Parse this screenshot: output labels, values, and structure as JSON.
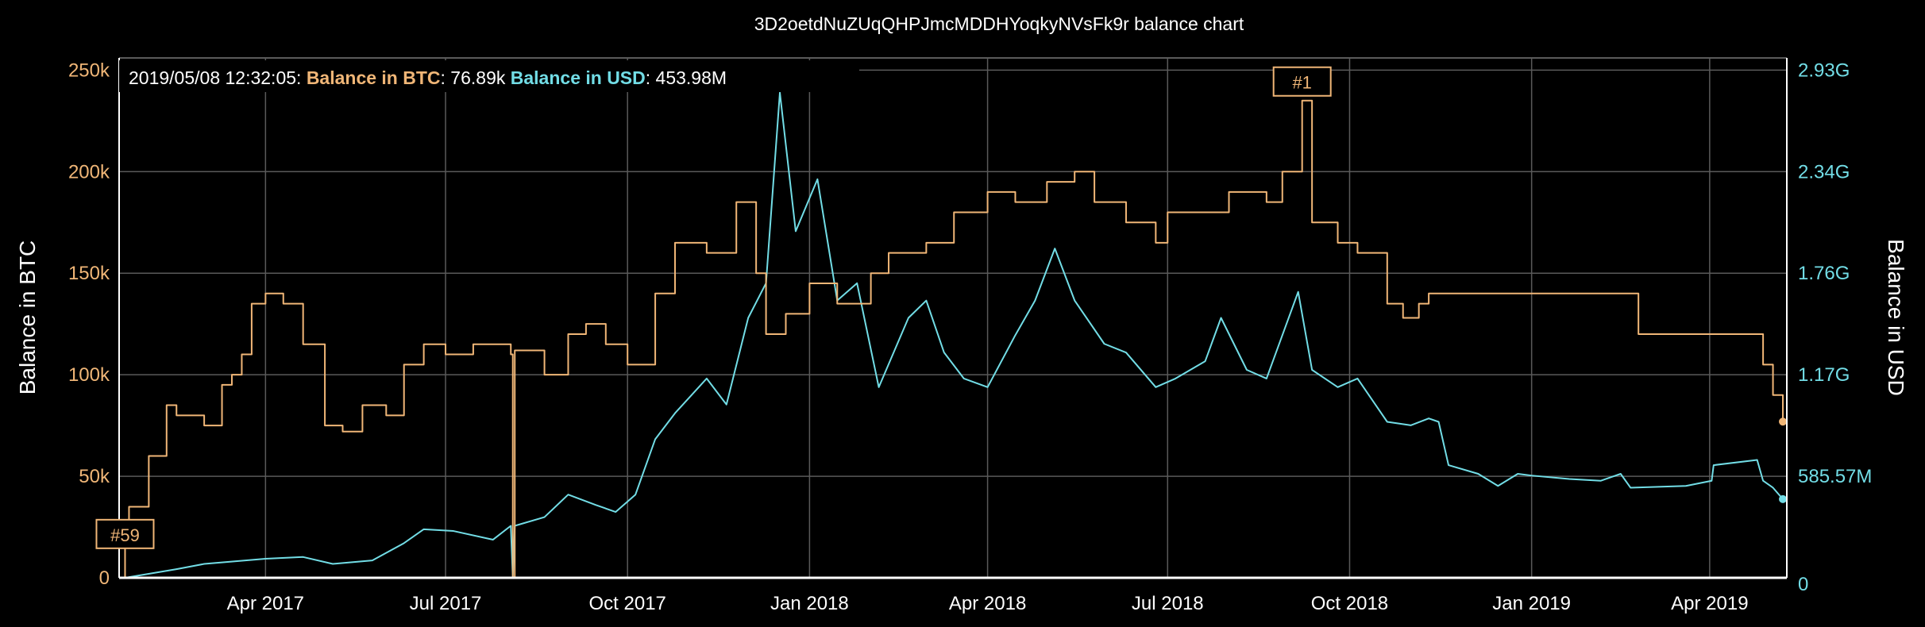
{
  "chart_data": {
    "type": "line",
    "title": "3D2oetdNuZUqQHPJmcMDDHYoqkyNVsFk9r balance chart",
    "xlabel": "",
    "ylabel": "Balance in BTC",
    "y2label": "Balance in USD",
    "xlim": [
      "2017-01-17",
      "2019-05-10"
    ],
    "ylim": [
      0,
      256000
    ],
    "y2lim": [
      0,
      3000000000
    ],
    "grid": true,
    "x_ticks": [
      {
        "date": "2017-04-01",
        "label": "Apr 2017"
      },
      {
        "date": "2017-07-01",
        "label": "Jul 2017"
      },
      {
        "date": "2017-10-01",
        "label": "Oct 2017"
      },
      {
        "date": "2018-01-01",
        "label": "Jan 2018"
      },
      {
        "date": "2018-04-01",
        "label": "Apr 2018"
      },
      {
        "date": "2018-07-01",
        "label": "Jul 2018"
      },
      {
        "date": "2018-10-01",
        "label": "Oct 2018"
      },
      {
        "date": "2019-01-01",
        "label": "Jan 2019"
      },
      {
        "date": "2019-04-01",
        "label": "Apr 2019"
      }
    ],
    "y_ticks": [
      {
        "value": 0,
        "label": "0"
      },
      {
        "value": 50000,
        "label": "50k"
      },
      {
        "value": 100000,
        "label": "100k"
      },
      {
        "value": 150000,
        "label": "150k"
      },
      {
        "value": 200000,
        "label": "200k"
      },
      {
        "value": 250000,
        "label": "250k"
      }
    ],
    "y2_ticks": [
      {
        "value": 0,
        "label": "0"
      },
      {
        "value": 585570000,
        "label": "585.57M"
      },
      {
        "value": 1171140000,
        "label": "1.17G"
      },
      {
        "value": 1756710000,
        "label": "1.76G"
      },
      {
        "value": 2342280000,
        "label": "2.34G"
      },
      {
        "value": 2927850000,
        "label": "2.93G"
      }
    ],
    "legend": {
      "position": "top-left",
      "timestamp": "2019/05/08 12:32:05:",
      "btc_label": "Balance in BTC",
      "btc_value": ": 76.89k",
      "usd_label": "Balance in USD",
      "usd_value": ": 453.98M"
    },
    "annotations": [
      {
        "label": "#59",
        "date": "2017-01-20",
        "series": "btc",
        "value": 20000
      },
      {
        "label": "#1",
        "date": "2018-09-07",
        "series": "btc",
        "value": 235000
      }
    ],
    "colors": {
      "btc": "#f0b677",
      "usd": "#72dde6",
      "grid": "#5a5a5a",
      "axis": "#ffffff"
    },
    "series": [
      {
        "name": "Balance in BTC",
        "axis": "left",
        "color": "#f0b677",
        "step": true,
        "points": [
          [
            "2017-01-20",
            0
          ],
          [
            "2017-01-20",
            20000
          ],
          [
            "2017-01-22",
            35000
          ],
          [
            "2017-02-01",
            60000
          ],
          [
            "2017-02-10",
            85000
          ],
          [
            "2017-02-15",
            80000
          ],
          [
            "2017-03-01",
            75000
          ],
          [
            "2017-03-10",
            95000
          ],
          [
            "2017-03-15",
            100000
          ],
          [
            "2017-03-20",
            110000
          ],
          [
            "2017-03-25",
            135000
          ],
          [
            "2017-04-01",
            140000
          ],
          [
            "2017-04-10",
            135000
          ],
          [
            "2017-04-20",
            115000
          ],
          [
            "2017-05-01",
            75000
          ],
          [
            "2017-05-10",
            72000
          ],
          [
            "2017-05-20",
            85000
          ],
          [
            "2017-06-01",
            80000
          ],
          [
            "2017-06-10",
            105000
          ],
          [
            "2017-06-20",
            115000
          ],
          [
            "2017-07-01",
            110000
          ],
          [
            "2017-07-15",
            115000
          ],
          [
            "2017-08-03",
            110000
          ],
          [
            "2017-08-04",
            0
          ],
          [
            "2017-08-05",
            112000
          ],
          [
            "2017-08-20",
            100000
          ],
          [
            "2017-09-01",
            120000
          ],
          [
            "2017-09-10",
            125000
          ],
          [
            "2017-09-20",
            115000
          ],
          [
            "2017-10-01",
            105000
          ],
          [
            "2017-10-15",
            140000
          ],
          [
            "2017-10-25",
            165000
          ],
          [
            "2017-11-10",
            160000
          ],
          [
            "2017-11-25",
            185000
          ],
          [
            "2017-12-05",
            150000
          ],
          [
            "2017-12-10",
            120000
          ],
          [
            "2017-12-20",
            130000
          ],
          [
            "2018-01-01",
            145000
          ],
          [
            "2018-01-15",
            135000
          ],
          [
            "2018-02-01",
            150000
          ],
          [
            "2018-02-10",
            160000
          ],
          [
            "2018-03-01",
            165000
          ],
          [
            "2018-03-15",
            180000
          ],
          [
            "2018-04-01",
            190000
          ],
          [
            "2018-04-15",
            185000
          ],
          [
            "2018-05-01",
            195000
          ],
          [
            "2018-05-15",
            200000
          ],
          [
            "2018-05-25",
            185000
          ],
          [
            "2018-06-10",
            175000
          ],
          [
            "2018-06-25",
            165000
          ],
          [
            "2018-07-01",
            180000
          ],
          [
            "2018-07-10",
            180000
          ],
          [
            "2018-08-01",
            190000
          ],
          [
            "2018-08-20",
            185000
          ],
          [
            "2018-08-28",
            200000
          ],
          [
            "2018-09-07",
            235000
          ],
          [
            "2018-09-12",
            175000
          ],
          [
            "2018-09-25",
            165000
          ],
          [
            "2018-10-05",
            160000
          ],
          [
            "2018-10-20",
            135000
          ],
          [
            "2018-10-28",
            128000
          ],
          [
            "2018-11-05",
            135000
          ],
          [
            "2018-11-10",
            140000
          ],
          [
            "2019-02-24",
            140000
          ],
          [
            "2019-02-24",
            120000
          ],
          [
            "2019-04-28",
            120000
          ],
          [
            "2019-04-28",
            105000
          ],
          [
            "2019-05-03",
            105000
          ],
          [
            "2019-05-03",
            90000
          ],
          [
            "2019-05-08",
            90000
          ],
          [
            "2019-05-08",
            76890
          ]
        ]
      },
      {
        "name": "Balance in USD",
        "axis": "right",
        "color": "#72dde6",
        "step": false,
        "points": [
          [
            "2017-01-20",
            0
          ],
          [
            "2017-02-15",
            50000000
          ],
          [
            "2017-03-01",
            80000000
          ],
          [
            "2017-04-01",
            110000000
          ],
          [
            "2017-04-20",
            120000000
          ],
          [
            "2017-05-05",
            80000000
          ],
          [
            "2017-05-25",
            100000000
          ],
          [
            "2017-06-10",
            200000000
          ],
          [
            "2017-06-20",
            280000000
          ],
          [
            "2017-07-05",
            270000000
          ],
          [
            "2017-07-25",
            220000000
          ],
          [
            "2017-08-03",
            300000000
          ],
          [
            "2017-08-04",
            0
          ],
          [
            "2017-08-05",
            300000000
          ],
          [
            "2017-08-20",
            350000000
          ],
          [
            "2017-09-01",
            480000000
          ],
          [
            "2017-09-15",
            420000000
          ],
          [
            "2017-09-25",
            380000000
          ],
          [
            "2017-10-05",
            480000000
          ],
          [
            "2017-10-15",
            800000000
          ],
          [
            "2017-10-25",
            950000000
          ],
          [
            "2017-11-10",
            1150000000
          ],
          [
            "2017-11-20",
            1000000000
          ],
          [
            "2017-12-01",
            1500000000
          ],
          [
            "2017-12-10",
            1700000000
          ],
          [
            "2017-12-17",
            2800000000
          ],
          [
            "2017-12-25",
            2000000000
          ],
          [
            "2018-01-05",
            2300000000
          ],
          [
            "2018-01-15",
            1600000000
          ],
          [
            "2018-01-25",
            1700000000
          ],
          [
            "2018-02-05",
            1100000000
          ],
          [
            "2018-02-20",
            1500000000
          ],
          [
            "2018-03-01",
            1600000000
          ],
          [
            "2018-03-10",
            1300000000
          ],
          [
            "2018-03-20",
            1150000000
          ],
          [
            "2018-04-01",
            1100000000
          ],
          [
            "2018-04-15",
            1400000000
          ],
          [
            "2018-04-25",
            1600000000
          ],
          [
            "2018-05-05",
            1900000000
          ],
          [
            "2018-05-15",
            1600000000
          ],
          [
            "2018-05-30",
            1350000000
          ],
          [
            "2018-06-10",
            1300000000
          ],
          [
            "2018-06-25",
            1100000000
          ],
          [
            "2018-07-05",
            1150000000
          ],
          [
            "2018-07-20",
            1250000000
          ],
          [
            "2018-07-28",
            1500000000
          ],
          [
            "2018-08-10",
            1200000000
          ],
          [
            "2018-08-20",
            1150000000
          ],
          [
            "2018-09-05",
            1650000000
          ],
          [
            "2018-09-12",
            1200000000
          ],
          [
            "2018-09-25",
            1100000000
          ],
          [
            "2018-10-05",
            1150000000
          ],
          [
            "2018-10-20",
            900000000
          ],
          [
            "2018-11-01",
            880000000
          ],
          [
            "2018-11-10",
            920000000
          ],
          [
            "2018-11-15",
            900000000
          ],
          [
            "2018-11-20",
            650000000
          ],
          [
            "2018-12-05",
            600000000
          ],
          [
            "2018-12-15",
            530000000
          ],
          [
            "2018-12-25",
            600000000
          ],
          [
            "2019-01-01",
            590000000
          ],
          [
            "2019-01-20",
            570000000
          ],
          [
            "2019-02-05",
            560000000
          ],
          [
            "2019-02-15",
            600000000
          ],
          [
            "2019-02-20",
            520000000
          ],
          [
            "2019-03-20",
            530000000
          ],
          [
            "2019-04-02",
            560000000
          ],
          [
            "2019-04-03",
            650000000
          ],
          [
            "2019-04-25",
            680000000
          ],
          [
            "2019-04-28",
            560000000
          ],
          [
            "2019-05-03",
            520000000
          ],
          [
            "2019-05-08",
            453980000
          ]
        ]
      }
    ]
  }
}
